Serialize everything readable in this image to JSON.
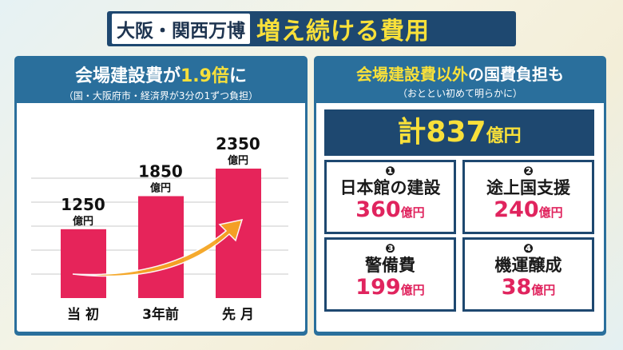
{
  "header": {
    "prefix": "大阪・関西万博",
    "title": "増え続ける費用"
  },
  "left": {
    "title_a": "会場建設費が",
    "title_b": "1.9倍",
    "title_c": "に",
    "subtitle": "（国・大阪府市・経済界が3分の1ずつ負担）"
  },
  "right": {
    "title_a": "会場建設費以外",
    "title_b": "の国費負担も",
    "subtitle": "（おととい初めて明らかに）",
    "total_prefix": "計",
    "total": "837",
    "total_unit": "億円",
    "items": [
      {
        "num": "❶",
        "label": "日本館の建設",
        "value": "360",
        "unit": "億円"
      },
      {
        "num": "❷",
        "label": "途上国支援",
        "value": "240",
        "unit": "億円"
      },
      {
        "num": "❸",
        "label": "警備費",
        "value": "199",
        "unit": "億円"
      },
      {
        "num": "❹",
        "label": "機運醸成",
        "value": "38",
        "unit": "億円"
      }
    ]
  },
  "chart_data": {
    "type": "bar",
    "categories": [
      "当 初",
      "3年前",
      "先 月"
    ],
    "values": [
      1250,
      1850,
      2350
    ],
    "unit": "億円",
    "ylim": [
      0,
      2600
    ],
    "grid": true,
    "bar_color": "#e6245a",
    "arrow": "increasing"
  }
}
